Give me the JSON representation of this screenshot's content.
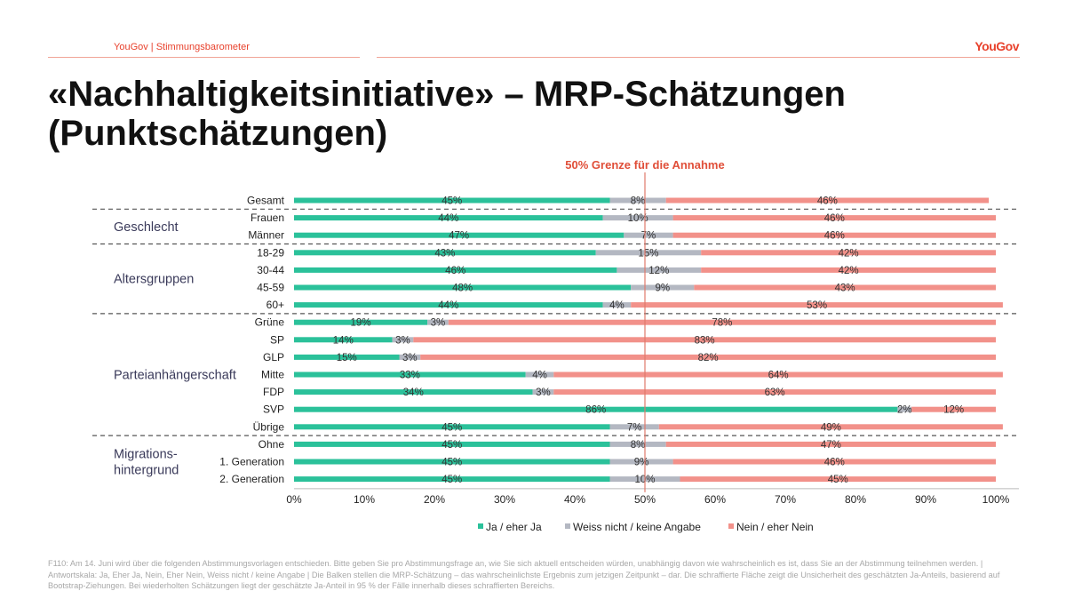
{
  "header": {
    "label": "YouGov | Stimmungsbarometer",
    "logo": "YouGov"
  },
  "title": "«Nachhaltigkeitsinitiative» – MRP-Schätzungen (Punktschätzungen)",
  "footnote": "F110: Am 14. Juni wird über die folgenden Abstimmungsvorlagen entschieden. Bitte geben Sie pro Abstimmungsfrage an, wie Sie sich aktuell entscheiden würden, unabhängig davon wie wahrscheinlich es ist, dass Sie an der Abstimmung teilnehmen werden. | Antwortskala: Ja, Eher Ja, Nein, Eher Nein, Weiss nicht / keine Angabe | Die Balken stellen die MRP-Schätzung – das wahrscheinlichste Ergebnis zum jetzigen Zeitpunkt – dar. Die schraffierte Fläche zeigt die Unsicherheit des geschätzten Ja-Anteils, basierend auf Bootstrap-Ziehungen. Bei wiederholten Schätzungen liegt der geschätzte Ja-Anteil in 95 % der Fälle innerhalb dieses schraffierten Bereichs.",
  "chart_data": {
    "type": "bar",
    "orientation": "horizontal-stacked-100",
    "annotation": "50% Grenze für die Annahme",
    "reference_line": 50,
    "xlim": [
      0,
      100
    ],
    "x_ticks": [
      "0%",
      "10%",
      "20%",
      "30%",
      "40%",
      "50%",
      "60%",
      "70%",
      "80%",
      "90%",
      "100%"
    ],
    "categories": [
      "Gesamt",
      "Frauen",
      "Männer",
      "18-29",
      "30-44",
      "45-59",
      "60+",
      "Grüne",
      "SP",
      "GLP",
      "Mitte",
      "FDP",
      "SVP",
      "Übrige",
      "Ohne",
      "1. Generation",
      "2. Generation"
    ],
    "groups": [
      {
        "label": "Geschlecht",
        "rows": [
          1,
          2
        ]
      },
      {
        "label": "Altersgruppen",
        "rows": [
          3,
          6
        ]
      },
      {
        "label": "Parteianhängerschaft",
        "rows": [
          7,
          13
        ]
      },
      {
        "label": "Migrations-\nhintergrund",
        "rows": [
          14,
          16
        ]
      }
    ],
    "separators_after_rows": [
      0,
      2,
      6,
      13
    ],
    "series": [
      {
        "name": "Ja / eher Ja",
        "color": "#2bc19a",
        "values": [
          45,
          44,
          47,
          43,
          46,
          48,
          44,
          19,
          14,
          15,
          33,
          34,
          86,
          45,
          45,
          45,
          45
        ]
      },
      {
        "name": "Weiss nicht / keine Angabe",
        "color": "#b4b8c2",
        "values": [
          8,
          10,
          7,
          15,
          12,
          9,
          4,
          3,
          3,
          3,
          4,
          3,
          2,
          7,
          8,
          9,
          10
        ]
      },
      {
        "name": "Nein / eher Nein",
        "color": "#f2918a",
        "values": [
          46,
          46,
          46,
          42,
          42,
          43,
          53,
          78,
          83,
          82,
          64,
          63,
          12,
          49,
          47,
          46,
          45
        ]
      }
    ],
    "legend_position": "bottom",
    "grid": false
  }
}
